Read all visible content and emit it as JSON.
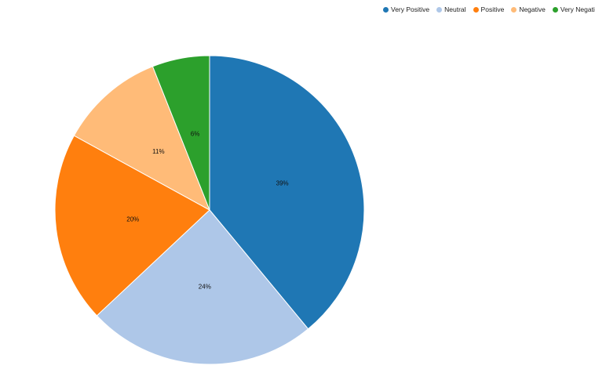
{
  "chart_data": {
    "type": "pie",
    "categories": [
      "Very Positive",
      "Neutral",
      "Positive",
      "Negative",
      "Very Negative"
    ],
    "values": [
      39,
      24,
      20,
      11,
      6
    ],
    "labels": [
      "39%",
      "24%",
      "20%",
      "11%",
      "6%"
    ],
    "colors": [
      "#1f77b4",
      "#aec7e8",
      "#ff7f0e",
      "#ffbb78",
      "#2ca02c"
    ],
    "legend_position": "top-right",
    "unit": "%"
  }
}
